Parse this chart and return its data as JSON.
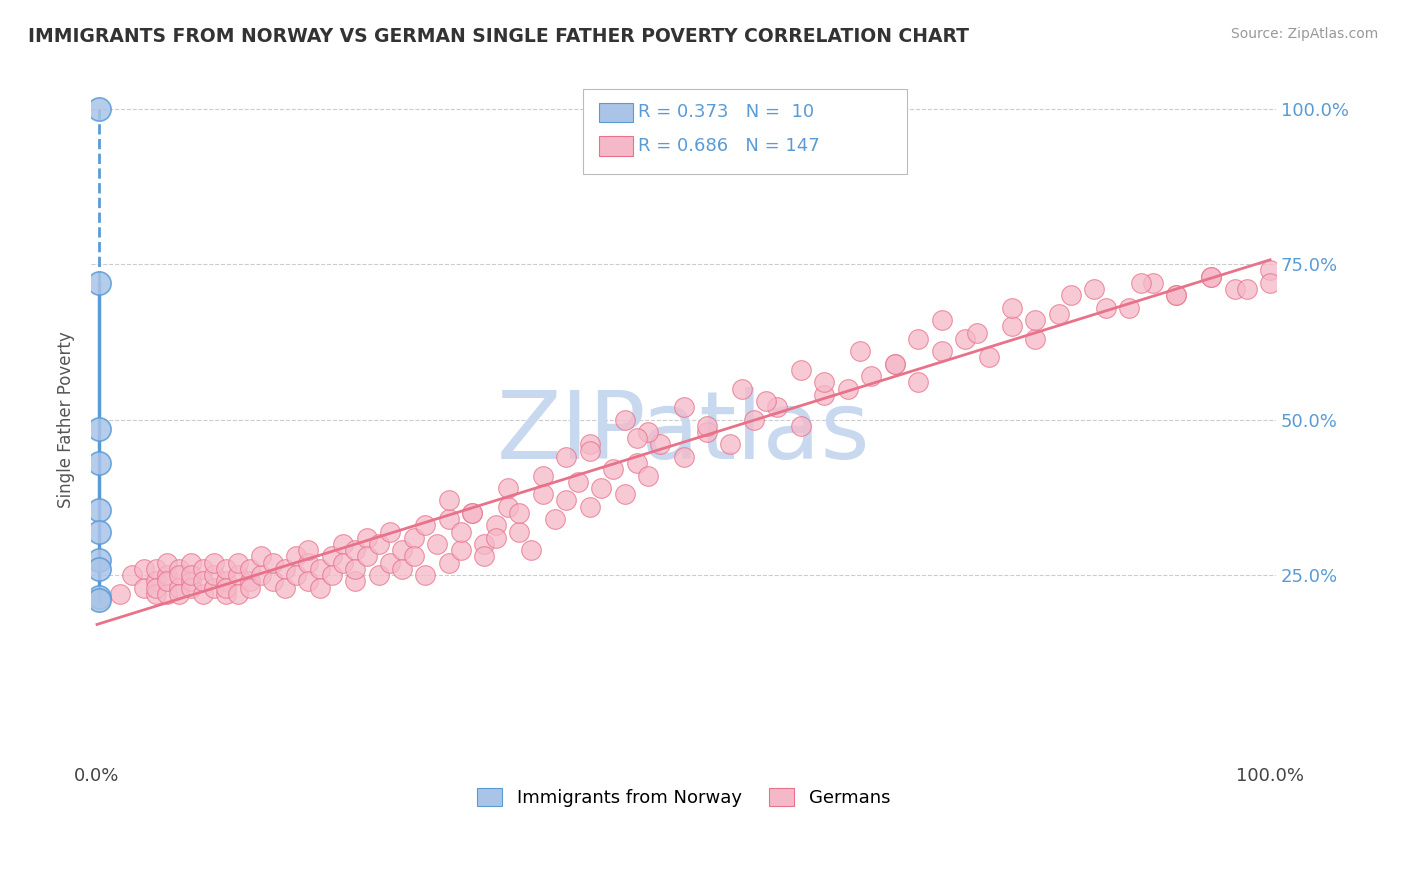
{
  "title": "IMMIGRANTS FROM NORWAY VS GERMAN SINGLE FATHER POVERTY CORRELATION CHART",
  "source": "Source: ZipAtlas.com",
  "ylabel": "Single Father Poverty",
  "legend_label1": "Immigrants from Norway",
  "legend_label2": "Germans",
  "r1": 0.373,
  "n1": 10,
  "r2": 0.686,
  "n2": 147,
  "color_norway_fill": "#aac4e8",
  "color_norway_edge": "#5b9bd5",
  "color_germany_fill": "#f5b8c8",
  "color_germany_edge": "#e8728a",
  "color_line_norway": "#5b9bd5",
  "color_line_germany": "#e8728a",
  "ytick_color": "#5b9bd5",
  "watermark_color": "#d0dff0",
  "norway_x": [
    0.002,
    0.002,
    0.002,
    0.002,
    0.002,
    0.002,
    0.002,
    0.002,
    0.002,
    0.002
  ],
  "norway_y": [
    1.0,
    0.72,
    0.485,
    0.43,
    0.355,
    0.32,
    0.275,
    0.26,
    0.215,
    0.21
  ],
  "germany_x": [
    0.02,
    0.03,
    0.04,
    0.04,
    0.05,
    0.05,
    0.05,
    0.05,
    0.06,
    0.06,
    0.06,
    0.06,
    0.07,
    0.07,
    0.07,
    0.07,
    0.08,
    0.08,
    0.08,
    0.08,
    0.09,
    0.09,
    0.09,
    0.1,
    0.1,
    0.1,
    0.11,
    0.11,
    0.11,
    0.11,
    0.12,
    0.12,
    0.12,
    0.13,
    0.13,
    0.13,
    0.14,
    0.14,
    0.15,
    0.15,
    0.16,
    0.16,
    0.17,
    0.17,
    0.18,
    0.18,
    0.18,
    0.19,
    0.19,
    0.2,
    0.2,
    0.21,
    0.21,
    0.22,
    0.22,
    0.22,
    0.23,
    0.23,
    0.24,
    0.24,
    0.25,
    0.25,
    0.26,
    0.26,
    0.27,
    0.27,
    0.28,
    0.28,
    0.29,
    0.3,
    0.3,
    0.31,
    0.31,
    0.32,
    0.33,
    0.33,
    0.34,
    0.34,
    0.35,
    0.36,
    0.36,
    0.37,
    0.38,
    0.39,
    0.4,
    0.41,
    0.42,
    0.43,
    0.44,
    0.45,
    0.46,
    0.47,
    0.48,
    0.5,
    0.52,
    0.54,
    0.56,
    0.58,
    0.6,
    0.62,
    0.64,
    0.66,
    0.68,
    0.7,
    0.72,
    0.74,
    0.76,
    0.78,
    0.8,
    0.82,
    0.85,
    0.88,
    0.9,
    0.92,
    0.95,
    0.97,
    1.0,
    0.4,
    0.42,
    0.45,
    0.47,
    0.5,
    0.52,
    0.55,
    0.57,
    0.6,
    0.62,
    0.65,
    0.68,
    0.7,
    0.72,
    0.75,
    0.78,
    0.8,
    0.83,
    0.86,
    0.89,
    0.92,
    0.95,
    0.98,
    1.0,
    0.3,
    0.32,
    0.35,
    0.38,
    0.42,
    0.46
  ],
  "germany_y": [
    0.22,
    0.25,
    0.23,
    0.26,
    0.24,
    0.22,
    0.26,
    0.23,
    0.25,
    0.22,
    0.27,
    0.24,
    0.26,
    0.23,
    0.25,
    0.22,
    0.24,
    0.27,
    0.23,
    0.25,
    0.26,
    0.22,
    0.24,
    0.23,
    0.25,
    0.27,
    0.24,
    0.22,
    0.26,
    0.23,
    0.25,
    0.27,
    0.22,
    0.24,
    0.26,
    0.23,
    0.25,
    0.28,
    0.24,
    0.27,
    0.26,
    0.23,
    0.28,
    0.25,
    0.27,
    0.24,
    0.29,
    0.26,
    0.23,
    0.28,
    0.25,
    0.3,
    0.27,
    0.24,
    0.29,
    0.26,
    0.31,
    0.28,
    0.25,
    0.3,
    0.27,
    0.32,
    0.29,
    0.26,
    0.31,
    0.28,
    0.33,
    0.25,
    0.3,
    0.27,
    0.34,
    0.29,
    0.32,
    0.35,
    0.3,
    0.28,
    0.33,
    0.31,
    0.36,
    0.32,
    0.35,
    0.29,
    0.38,
    0.34,
    0.37,
    0.4,
    0.36,
    0.39,
    0.42,
    0.38,
    0.43,
    0.41,
    0.46,
    0.44,
    0.48,
    0.46,
    0.5,
    0.52,
    0.49,
    0.54,
    0.55,
    0.57,
    0.59,
    0.56,
    0.61,
    0.63,
    0.6,
    0.65,
    0.63,
    0.67,
    0.71,
    0.68,
    0.72,
    0.7,
    0.73,
    0.71,
    0.74,
    0.44,
    0.46,
    0.5,
    0.48,
    0.52,
    0.49,
    0.55,
    0.53,
    0.58,
    0.56,
    0.61,
    0.59,
    0.63,
    0.66,
    0.64,
    0.68,
    0.66,
    0.7,
    0.68,
    0.72,
    0.7,
    0.73,
    0.71,
    0.72,
    0.37,
    0.35,
    0.39,
    0.41,
    0.45,
    0.47
  ],
  "xlim": [
    0.0,
    1.0
  ],
  "ylim": [
    0.0,
    1.05
  ],
  "yticks": [
    0.25,
    0.5,
    0.75,
    1.0
  ],
  "ytick_labels": [
    "25.0%",
    "50.0%",
    "75.0%",
    "100.0%"
  ]
}
